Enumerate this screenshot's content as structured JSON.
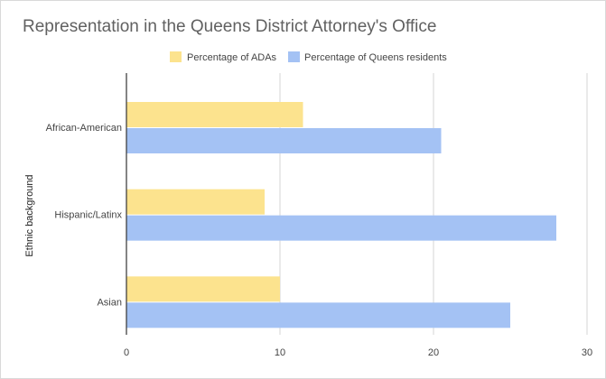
{
  "chart_data": {
    "type": "bar",
    "orientation": "horizontal",
    "title": "Representation in the Queens District Attorney's Office",
    "xlabel": "",
    "ylabel": "Ethnic background",
    "categories": [
      "African-American",
      "Hispanic/Latinx",
      "Asian"
    ],
    "series": [
      {
        "name": "Percentage of ADAs",
        "color": "#fce38e",
        "values": [
          11.5,
          9.0,
          10.0
        ]
      },
      {
        "name": "Percentage of Queens residents",
        "color": "#a4c2f4",
        "values": [
          20.5,
          28.0,
          25.0
        ]
      }
    ],
    "xlim": [
      0,
      30
    ],
    "xticks": [
      "0",
      "10",
      "20",
      "30"
    ],
    "grid": true,
    "legend_position": "top"
  }
}
